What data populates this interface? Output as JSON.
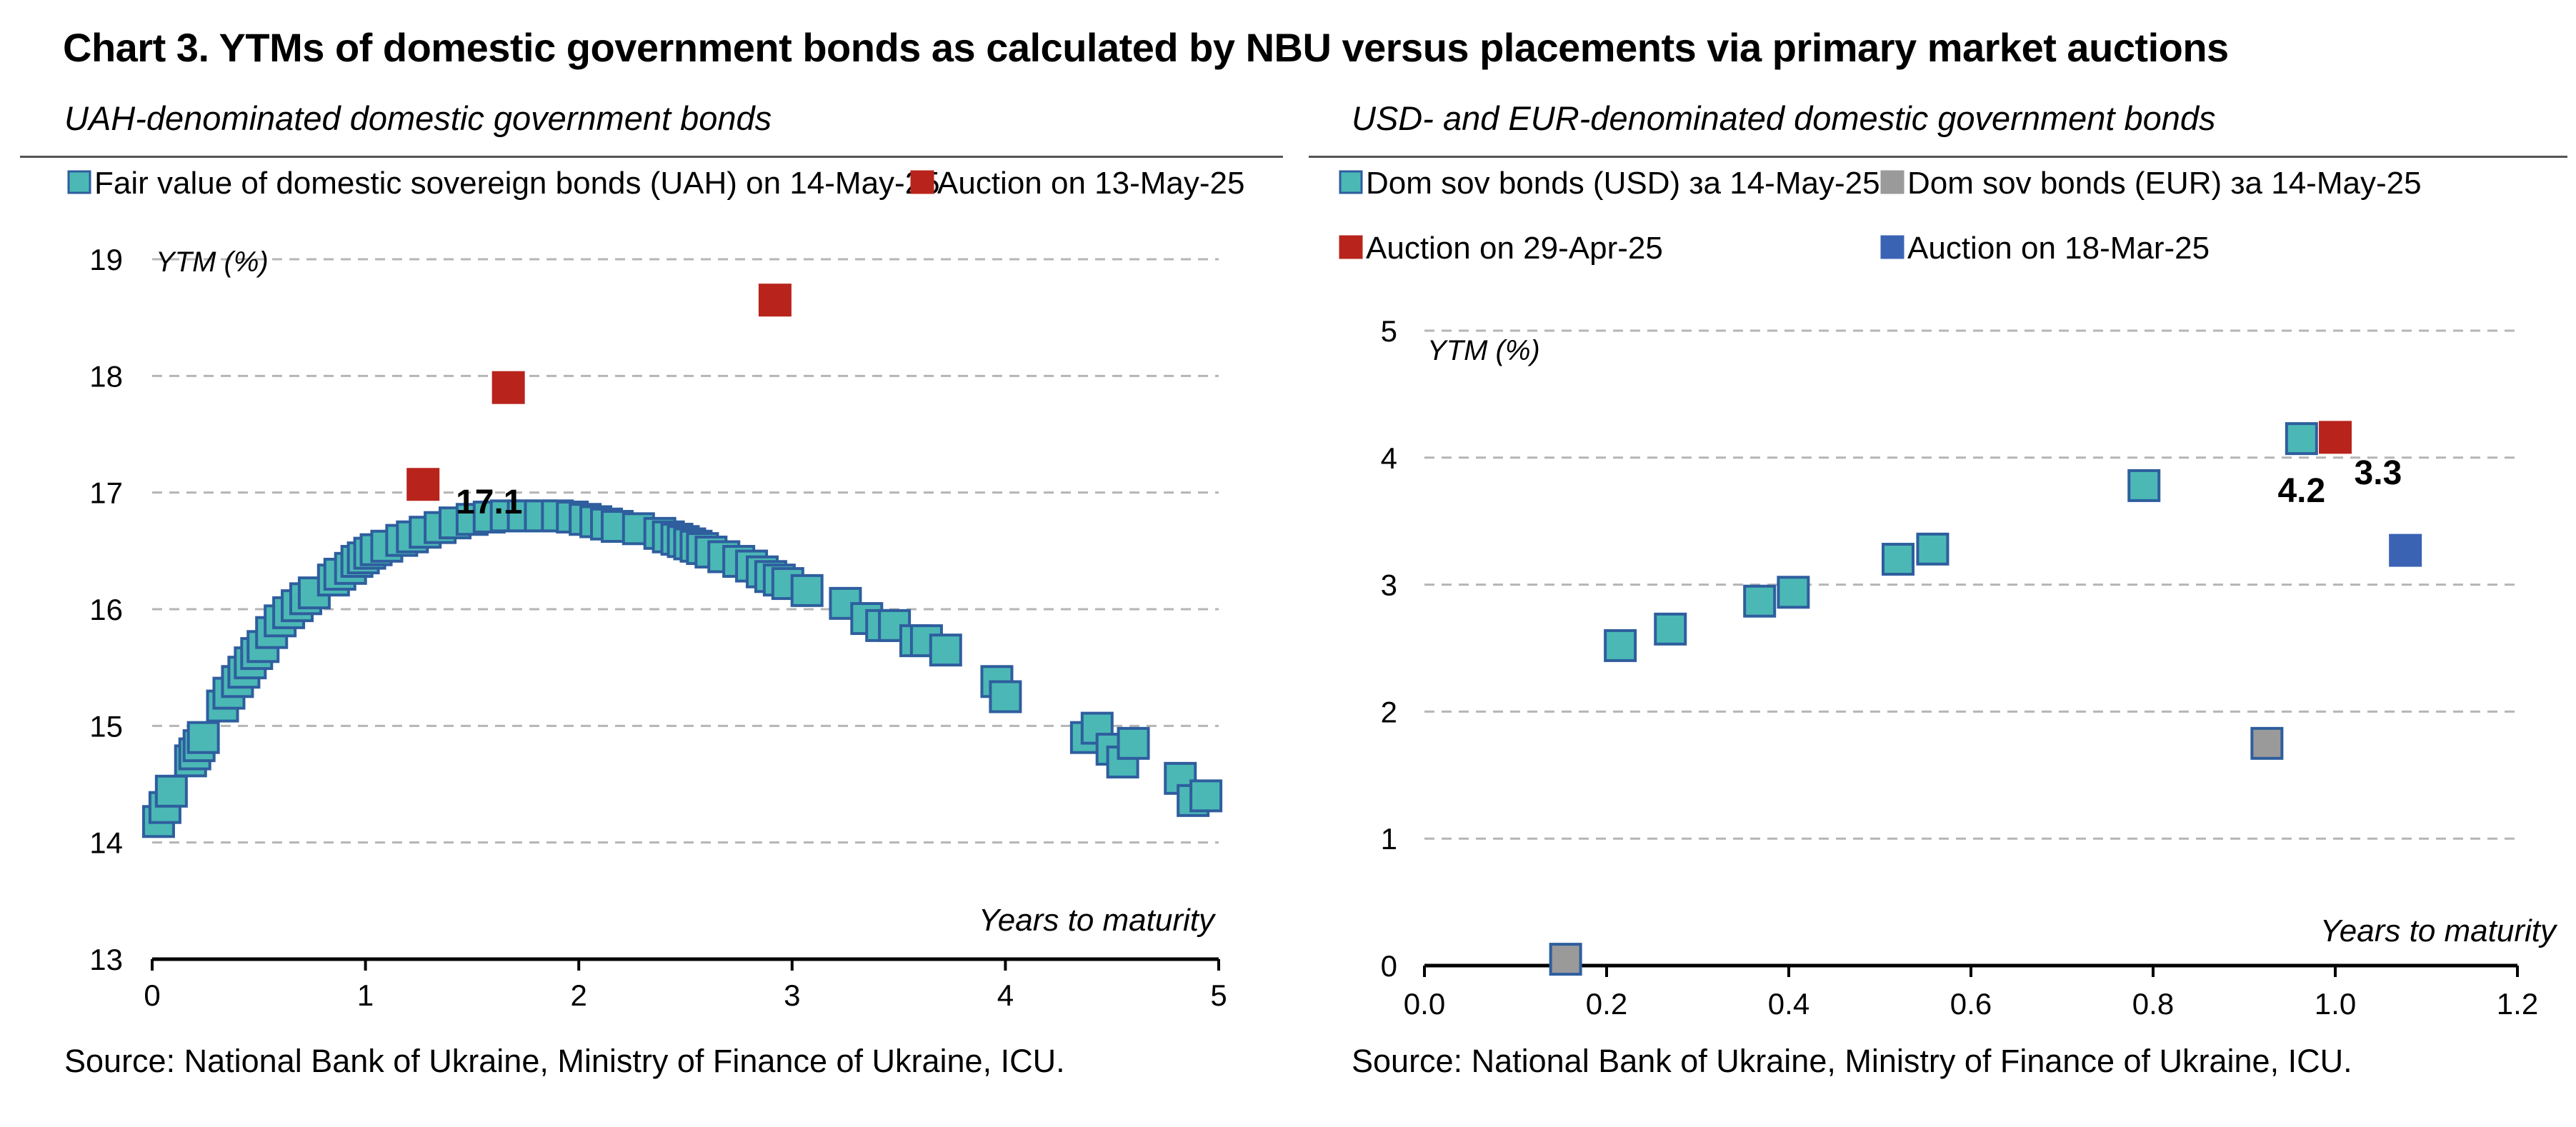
{
  "title": "Chart 3. YTMs of domestic government bonds as calculated by NBU versus placements via primary market auctions",
  "colors": {
    "teal": "#4BB8B5",
    "teal_stroke": "#2E5E9E",
    "red": "#B8241C",
    "blue": "#3A63B4",
    "gray": "#9A9A9A"
  },
  "chart_data": [
    {
      "type": "scatter",
      "title": "UAH-denominated domestic government bonds",
      "ylabel": "YTM (%)",
      "xlabel": "Years to maturity",
      "xlim": [
        0,
        5
      ],
      "ylim": [
        13,
        19
      ],
      "xticks": [
        "0",
        "1",
        "2",
        "3",
        "4",
        "5"
      ],
      "yticks": [
        "13",
        "14",
        "15",
        "16",
        "17",
        "18",
        "19"
      ],
      "grid": true,
      "legend_position": "top",
      "source": "Source: National Bank of Ukraine, Ministry of Finance of Ukraine, ICU.",
      "series": [
        {
          "name": "Fair value of domestic sovereign bonds (UAH) on 14-May-25",
          "color": "#4BB8B5",
          "points": [
            [
              0.03,
              14.18
            ],
            [
              0.06,
              14.3
            ],
            [
              0.09,
              14.44
            ],
            [
              0.18,
              14.7
            ],
            [
              0.2,
              14.76
            ],
            [
              0.22,
              14.83
            ],
            [
              0.24,
              14.9
            ],
            [
              0.33,
              15.17
            ],
            [
              0.36,
              15.28
            ],
            [
              0.4,
              15.38
            ],
            [
              0.43,
              15.46
            ],
            [
              0.46,
              15.54
            ],
            [
              0.49,
              15.62
            ],
            [
              0.52,
              15.68
            ],
            [
              0.56,
              15.8
            ],
            [
              0.6,
              15.9
            ],
            [
              0.64,
              15.97
            ],
            [
              0.68,
              16.03
            ],
            [
              0.72,
              16.09
            ],
            [
              0.76,
              16.14
            ],
            [
              0.85,
              16.25
            ],
            [
              0.88,
              16.3
            ],
            [
              0.93,
              16.35
            ],
            [
              0.96,
              16.41
            ],
            [
              0.99,
              16.44
            ],
            [
              1.02,
              16.48
            ],
            [
              1.05,
              16.51
            ],
            [
              1.1,
              16.54
            ],
            [
              1.17,
              16.59
            ],
            [
              1.22,
              16.62
            ],
            [
              1.28,
              16.66
            ],
            [
              1.35,
              16.7
            ],
            [
              1.42,
              16.74
            ],
            [
              1.5,
              16.77
            ],
            [
              1.58,
              16.79
            ],
            [
              1.66,
              16.8
            ],
            [
              1.74,
              16.8
            ],
            [
              1.82,
              16.8
            ],
            [
              1.9,
              16.8
            ],
            [
              1.97,
              16.79
            ],
            [
              2.03,
              16.77
            ],
            [
              2.08,
              16.75
            ],
            [
              2.13,
              16.73
            ],
            [
              2.18,
              16.71
            ],
            [
              2.28,
              16.69
            ],
            [
              2.38,
              16.65
            ],
            [
              2.42,
              16.62
            ],
            [
              2.46,
              16.6
            ],
            [
              2.49,
              16.58
            ],
            [
              2.52,
              16.56
            ],
            [
              2.55,
              16.54
            ],
            [
              2.58,
              16.52
            ],
            [
              2.62,
              16.49
            ],
            [
              2.68,
              16.45
            ],
            [
              2.75,
              16.41
            ],
            [
              2.81,
              16.37
            ],
            [
              2.86,
              16.32
            ],
            [
              2.9,
              16.28
            ],
            [
              2.94,
              16.25
            ],
            [
              2.98,
              16.22
            ],
            [
              3.07,
              16.16
            ],
            [
              3.25,
              16.05
            ],
            [
              3.35,
              15.92
            ],
            [
              3.42,
              15.86
            ],
            [
              3.48,
              15.86
            ],
            [
              3.58,
              15.73
            ],
            [
              3.63,
              15.73
            ],
            [
              3.72,
              15.65
            ],
            [
              3.96,
              15.38
            ],
            [
              4.0,
              15.25
            ],
            [
              4.38,
              14.9
            ],
            [
              4.43,
              14.98
            ],
            [
              4.5,
              14.8
            ],
            [
              4.55,
              14.69
            ],
            [
              4.6,
              14.85
            ],
            [
              4.82,
              14.55
            ],
            [
              4.88,
              14.36
            ],
            [
              4.94,
              14.4
            ]
          ]
        },
        {
          "name": "Auction on 13-May-25",
          "color": "#B8241C",
          "points": [
            [
              1.27,
              17.07
            ],
            [
              1.67,
              17.9
            ],
            [
              2.92,
              18.65
            ]
          ]
        }
      ],
      "annotations": [
        {
          "text": "17.1",
          "x": 1.58,
          "y": 16.82
        }
      ]
    },
    {
      "type": "scatter",
      "title": "USD- and EUR-denominated domestic government bonds",
      "ylabel": "YTM (%)",
      "xlabel": "Years to maturity",
      "xlim": [
        0,
        1.2
      ],
      "ylim": [
        0,
        5
      ],
      "xticks": [
        "0.0",
        "0.2",
        "0.4",
        "0.6",
        "0.8",
        "1.0",
        "1.2"
      ],
      "yticks": [
        "0",
        "1",
        "2",
        "3",
        "4",
        "5"
      ],
      "grid": true,
      "legend_position": "top",
      "source": "Source: National Bank of Ukraine, Ministry of Finance of Ukraine, ICU.",
      "series": [
        {
          "name": "Dom sov bonds (USD) за 14-May-25",
          "color": "#4BB8B5",
          "points": [
            [
              0.215,
              2.52
            ],
            [
              0.27,
              2.65
            ],
            [
              0.368,
              2.87
            ],
            [
              0.405,
              2.94
            ],
            [
              0.52,
              3.2
            ],
            [
              0.558,
              3.28
            ],
            [
              0.79,
              3.78
            ],
            [
              0.963,
              4.15
            ]
          ]
        },
        {
          "name": "Dom sov bonds (EUR) за 14-May-25",
          "color": "#9A9A9A",
          "points": [
            [
              0.155,
              0.05
            ],
            [
              0.925,
              1.75
            ]
          ]
        },
        {
          "name": "Auction on 29-Apr-25",
          "color": "#B8241C",
          "points": [
            [
              1.0,
              4.16
            ]
          ]
        },
        {
          "name": "Auction on 18-Mar-25",
          "color": "#3A63B4",
          "points": [
            [
              1.077,
              3.27
            ]
          ]
        }
      ],
      "annotations": [
        {
          "text": "4.2",
          "x": 0.963,
          "y": 3.65
        },
        {
          "text": "3.3",
          "x": 1.047,
          "y": 3.79
        }
      ]
    }
  ]
}
